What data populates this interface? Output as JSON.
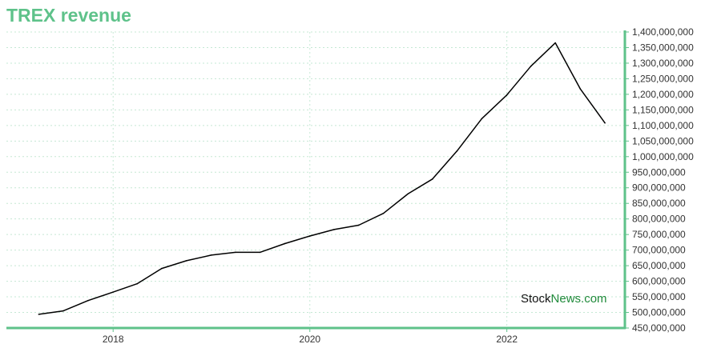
{
  "title": "TREX revenue",
  "watermark": {
    "part1": "Stock",
    "part2": "News.com"
  },
  "colors": {
    "accent": "#5ec28a",
    "line": "#000000",
    "grid": "#c5e8d4",
    "watermark": "#1f8a3a"
  },
  "chart_data": {
    "type": "line",
    "title": "TREX revenue",
    "xlabel": "",
    "ylabel": "",
    "xlim": [
      "2016-12-01",
      "2023-03-15"
    ],
    "ylim": [
      450000000,
      1400000000
    ],
    "x_ticks": [
      "2018",
      "2020",
      "2022"
    ],
    "y_ticks": [
      450000000,
      500000000,
      550000000,
      600000000,
      650000000,
      700000000,
      750000000,
      800000000,
      850000000,
      900000000,
      950000000,
      1000000000,
      1050000000,
      1100000000,
      1150000000,
      1200000000,
      1250000000,
      1300000000,
      1350000000,
      1400000000
    ],
    "y_tick_labels": [
      "450,000,000",
      "500,000,000",
      "550,000,000",
      "600,000,000",
      "650,000,000",
      "700,000,000",
      "750,000,000",
      "800,000,000",
      "850,000,000",
      "900,000,000",
      "950,000,000",
      "1,000,000,000",
      "1,050,000,000",
      "1,100,000,000",
      "1,150,000,000",
      "1,200,000,000",
      "1,250,000,000",
      "1,300,000,000",
      "1,350,000,000",
      "1,400,000,000"
    ],
    "grid": true,
    "y_axis_side": "right",
    "series": [
      {
        "x": [
          "2017-03-31",
          "2017-06-30",
          "2017-09-30",
          "2017-12-31",
          "2018-03-31",
          "2018-06-30",
          "2018-09-30",
          "2018-12-31",
          "2019-03-31",
          "2019-06-30",
          "2019-09-30",
          "2019-12-31",
          "2020-03-31",
          "2020-06-30",
          "2020-09-30",
          "2020-12-31",
          "2021-03-31",
          "2021-06-30",
          "2021-09-30",
          "2021-12-31",
          "2022-03-31",
          "2022-06-30",
          "2022-09-30",
          "2022-12-31"
        ],
        "y": [
          494000000,
          505000000,
          538000000,
          565000000,
          592000000,
          641000000,
          666000000,
          684000000,
          693000000,
          693000000,
          721000000,
          745000000,
          766000000,
          780000000,
          818000000,
          881000000,
          928000000,
          1018000000,
          1122000000,
          1197000000,
          1290000000,
          1365000000,
          1218000000,
          1108000000
        ]
      }
    ]
  }
}
